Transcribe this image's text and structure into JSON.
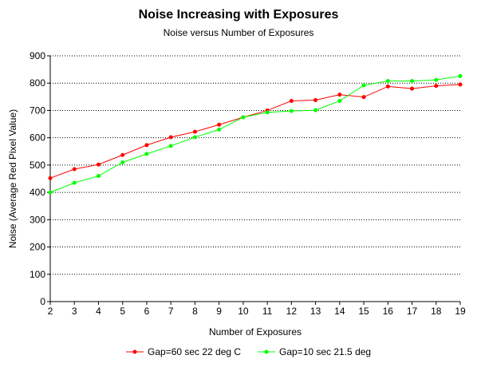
{
  "chart_data": {
    "type": "line",
    "title": "Noise Increasing with Exposures",
    "subtitle": "Noise versus Number of Exposures",
    "xlabel": "Number of Exposures",
    "ylabel": "Noise (Average Red Pixel Value)",
    "x": [
      2,
      3,
      4,
      5,
      6,
      7,
      8,
      9,
      10,
      11,
      12,
      13,
      14,
      15,
      16,
      17,
      18,
      19
    ],
    "xlim": [
      2,
      19
    ],
    "ylim": [
      0,
      900
    ],
    "yticks": [
      0,
      100,
      200,
      300,
      400,
      500,
      600,
      700,
      800,
      900
    ],
    "grid": "horizontal dotted",
    "legend_position": "bottom",
    "series": [
      {
        "name": "Gap=60 sec 22 deg C",
        "color": "#ff0000",
        "values": [
          452,
          485,
          502,
          537,
          573,
          602,
          622,
          648,
          675,
          700,
          735,
          738,
          758,
          749,
          788,
          780,
          790,
          795
        ]
      },
      {
        "name": "Gap=10 sec 21.5 deg",
        "color": "#00ff00",
        "values": [
          400,
          435,
          460,
          510,
          541,
          570,
          602,
          630,
          675,
          693,
          698,
          701,
          735,
          792,
          808,
          808,
          812,
          826
        ]
      }
    ]
  }
}
